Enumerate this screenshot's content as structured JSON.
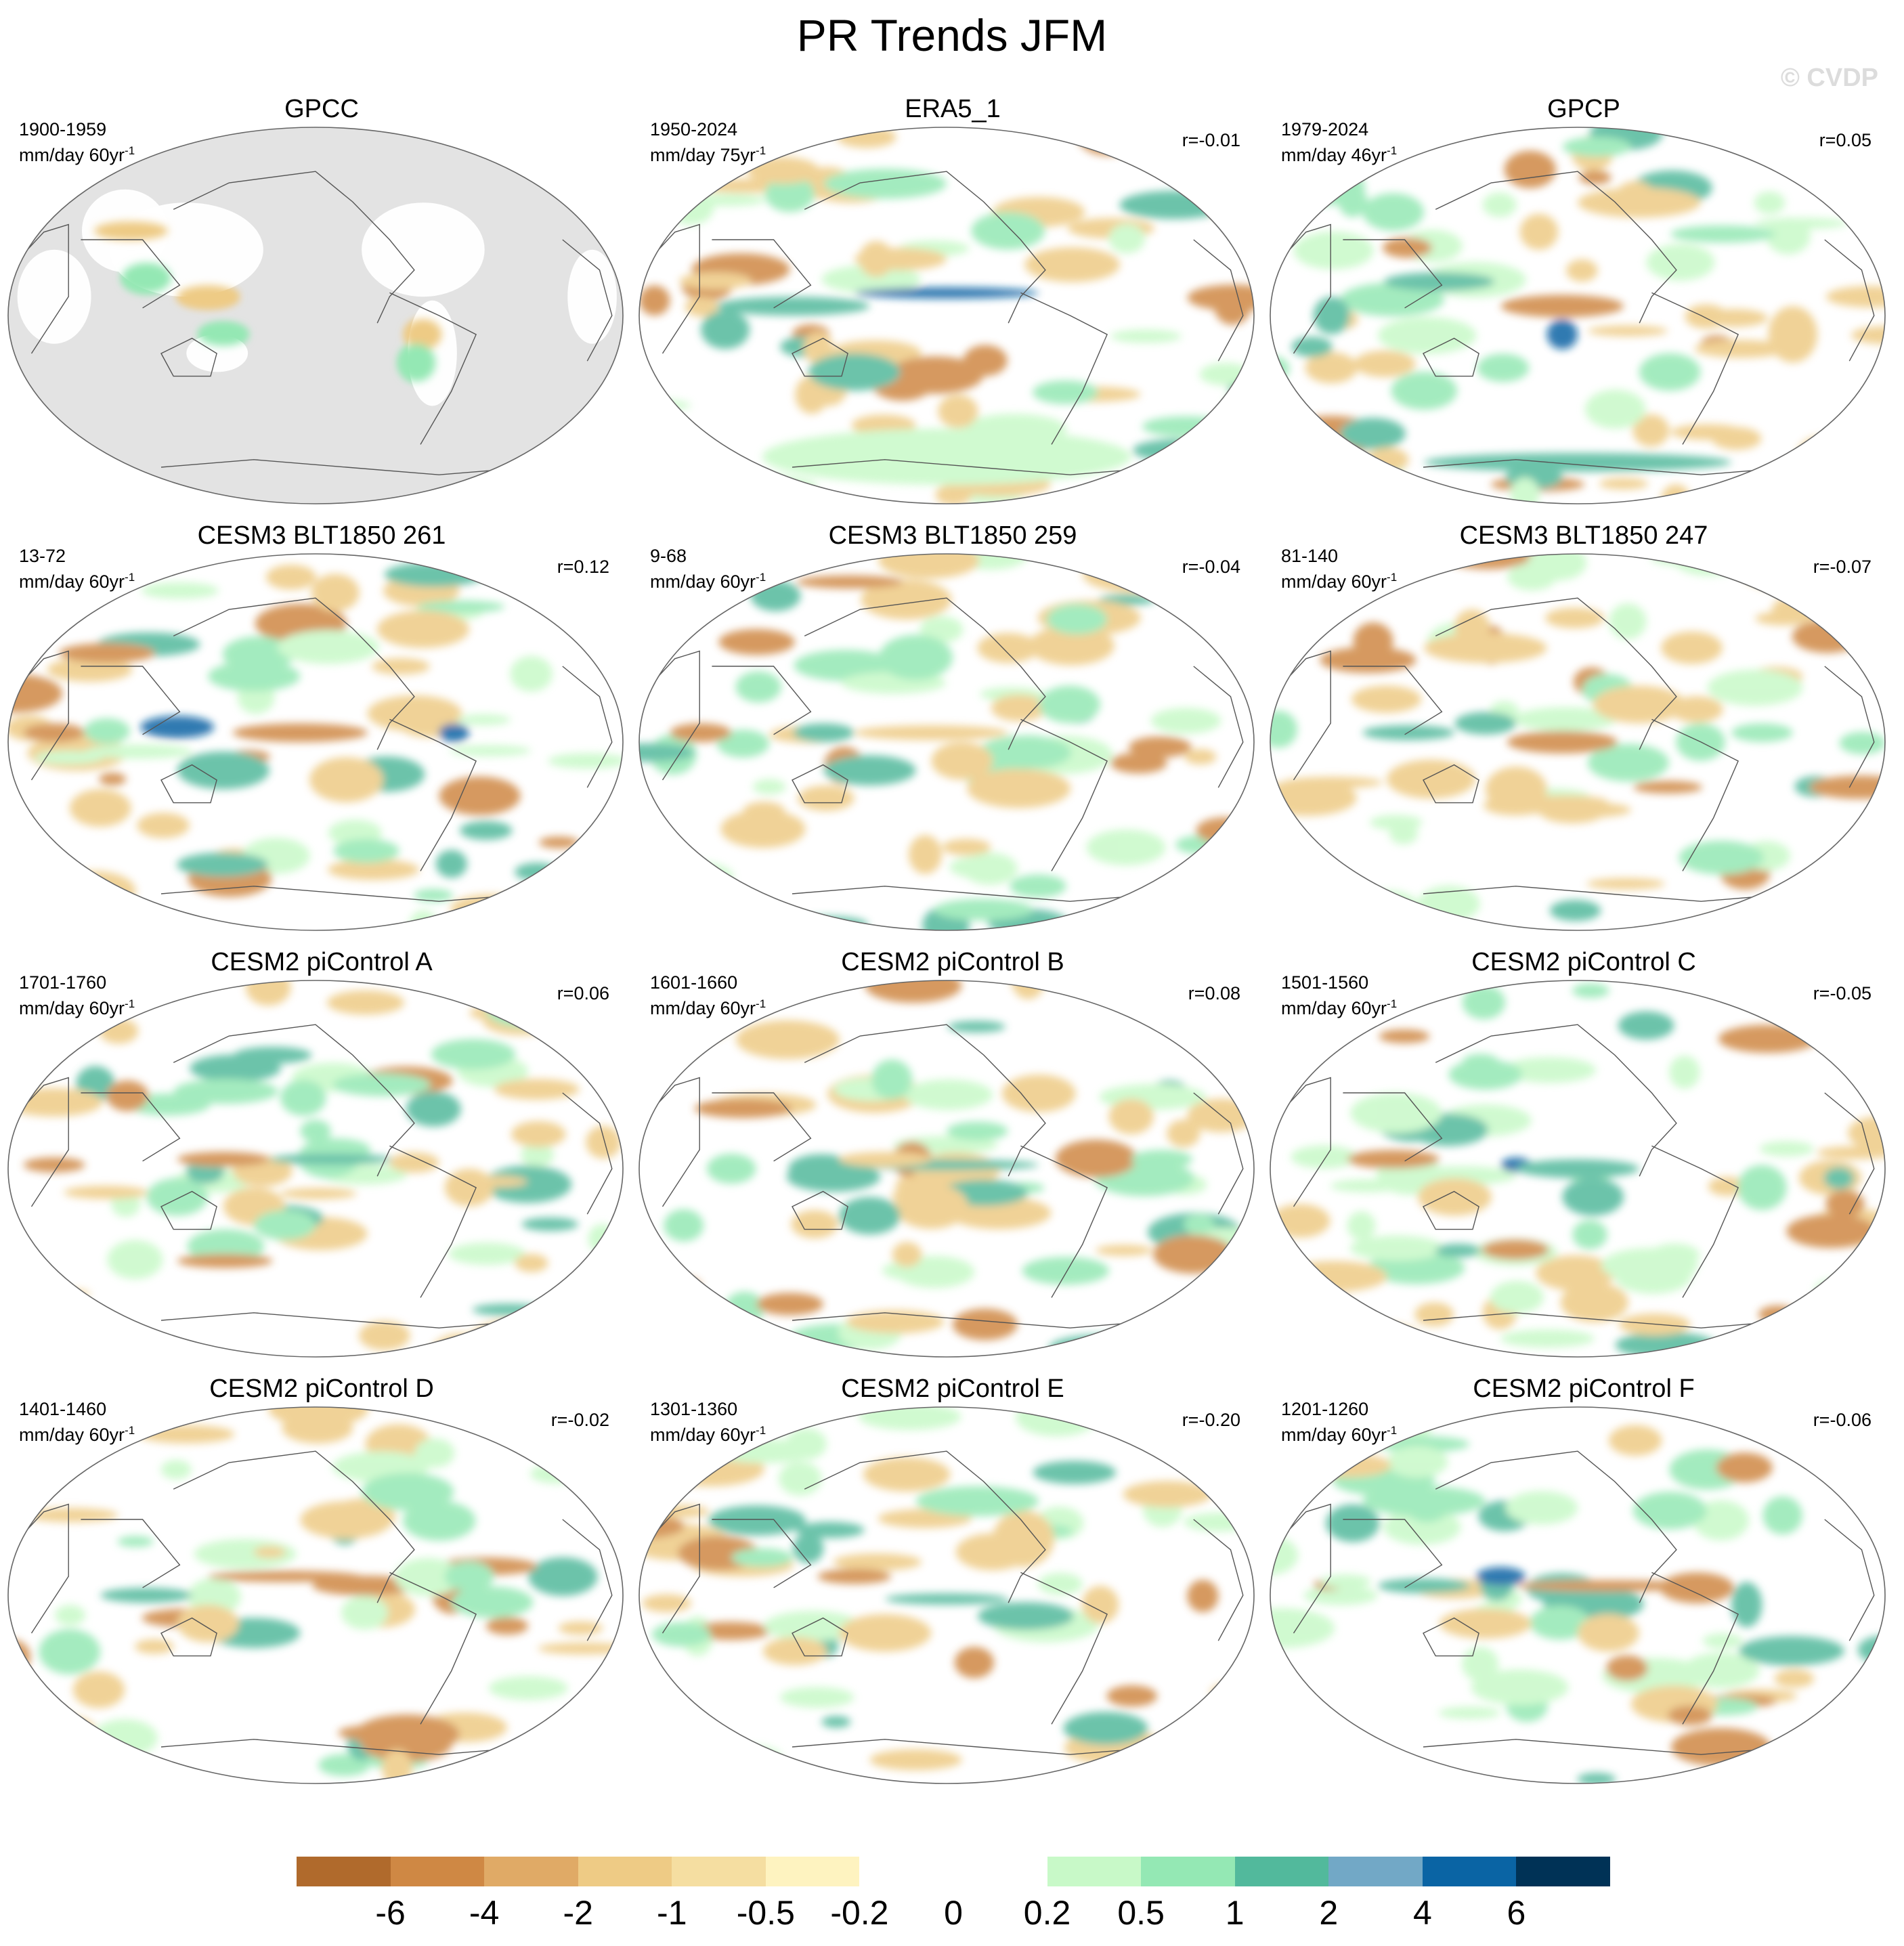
{
  "title": "PR Trends JFM",
  "watermark": "© CVDP",
  "units_label": "mm/day",
  "panels": [
    {
      "title": "GPCC",
      "period": "1900-1959",
      "trend_len": "60yr",
      "r": "",
      "obs_mask": true,
      "blobs": [
        [
          "tan",
          -0.6,
          0.45,
          0.12,
          0.05
        ],
        [
          "green",
          -0.55,
          0.2,
          0.08,
          0.08
        ],
        [
          "tan",
          -0.35,
          0.1,
          0.1,
          0.06
        ],
        [
          "green",
          -0.3,
          -0.1,
          0.08,
          0.06
        ],
        [
          "tan",
          0.35,
          -0.1,
          0.06,
          0.08
        ],
        [
          "green",
          0.33,
          -0.25,
          0.06,
          0.1
        ]
      ]
    },
    {
      "title": "ERA5_1",
      "period": "1950-2024",
      "trend_len": "75yr",
      "r": "r=-0.01",
      "obs_mask": false,
      "blobs": [
        [
          "blue",
          0.0,
          0.12,
          0.3,
          0.03
        ],
        [
          "teal",
          -0.5,
          0.05,
          0.25,
          0.05
        ],
        [
          "orange",
          0.93,
          0.05,
          0.06,
          0.1
        ],
        [
          "orange",
          -0.95,
          0.08,
          0.05,
          0.08
        ],
        [
          "tan",
          0.3,
          0.55,
          0.15,
          0.08
        ],
        [
          "green",
          -0.2,
          0.7,
          0.2,
          0.08
        ],
        [
          "lgreen",
          0.0,
          -0.75,
          0.6,
          0.15
        ],
        [
          "teal",
          -0.3,
          -0.3,
          0.15,
          0.1
        ],
        [
          "green",
          0.2,
          0.45,
          0.12,
          0.1
        ],
        [
          "tan",
          -0.15,
          0.3,
          0.15,
          0.06
        ]
      ]
    },
    {
      "title": "GPCP",
      "period": "1979-2024",
      "trend_len": "46yr",
      "r": "r=0.05",
      "obs_mask": false,
      "blobs": [
        [
          "teal",
          -0.45,
          0.18,
          0.18,
          0.05
        ],
        [
          "orange",
          -0.05,
          0.05,
          0.2,
          0.06
        ],
        [
          "blue",
          -0.05,
          -0.1,
          0.05,
          0.08
        ],
        [
          "teal",
          0.0,
          -0.78,
          0.5,
          0.05
        ],
        [
          "tan",
          0.2,
          0.6,
          0.2,
          0.08
        ],
        [
          "green",
          -0.6,
          0.55,
          0.1,
          0.1
        ],
        [
          "teal",
          -0.8,
          0.0,
          0.06,
          0.1
        ],
        [
          "tan",
          0.7,
          -0.1,
          0.08,
          0.15
        ],
        [
          "green",
          0.3,
          -0.3,
          0.1,
          0.1
        ]
      ]
    },
    {
      "title": "CESM3 BLT1850 261",
      "period": "13-72",
      "trend_len": "60yr",
      "r": "r=0.12",
      "obs_mask": false,
      "blobs": [
        [
          "orange",
          -0.05,
          0.05,
          0.22,
          0.05
        ],
        [
          "blue",
          -0.45,
          0.08,
          0.12,
          0.06
        ],
        [
          "teal",
          -0.3,
          -0.15,
          0.15,
          0.1
        ],
        [
          "orange",
          -0.85,
          0.05,
          0.1,
          0.05
        ],
        [
          "green",
          -0.2,
          0.35,
          0.15,
          0.08
        ],
        [
          "tan",
          0.35,
          0.6,
          0.15,
          0.1
        ],
        [
          "blue",
          0.45,
          0.05,
          0.05,
          0.05
        ],
        [
          "tan",
          -0.7,
          -0.35,
          0.1,
          0.1
        ],
        [
          "tan",
          0.1,
          -0.2,
          0.12,
          0.12
        ]
      ]
    },
    {
      "title": "CESM3 BLT1850 259",
      "period": "9-68",
      "trend_len": "60yr",
      "r": "r=-0.04",
      "obs_mask": false,
      "blobs": [
        [
          "tan",
          -0.05,
          0.05,
          0.25,
          0.04
        ],
        [
          "teal",
          -0.4,
          0.05,
          0.1,
          0.05
        ],
        [
          "orange",
          -0.8,
          0.05,
          0.1,
          0.05
        ],
        [
          "green",
          -0.1,
          0.45,
          0.12,
          0.12
        ],
        [
          "teal",
          -0.25,
          -0.15,
          0.15,
          0.08
        ],
        [
          "tan",
          0.05,
          -0.1,
          0.1,
          0.1
        ],
        [
          "green",
          0.4,
          0.2,
          0.1,
          0.1
        ],
        [
          "tan",
          0.2,
          0.5,
          0.1,
          0.08
        ]
      ]
    },
    {
      "title": "CESM3 BLT1850 247",
      "period": "81-140",
      "trend_len": "60yr",
      "r": "r=-0.07",
      "obs_mask": false,
      "blobs": [
        [
          "orange",
          -0.05,
          0.0,
          0.18,
          0.06
        ],
        [
          "teal",
          -0.55,
          0.05,
          0.15,
          0.04
        ],
        [
          "teal",
          -0.3,
          0.1,
          0.1,
          0.06
        ],
        [
          "tan",
          -0.2,
          -0.25,
          0.1,
          0.12
        ],
        [
          "green",
          0.4,
          0.0,
          0.08,
          0.1
        ],
        [
          "tan",
          0.2,
          0.2,
          0.15,
          0.1
        ],
        [
          "tan",
          -0.3,
          0.5,
          0.2,
          0.08
        ],
        [
          "green",
          0.6,
          0.05,
          0.1,
          0.05
        ]
      ]
    },
    {
      "title": "CESM2 piControl A",
      "period": "1701-1760",
      "trend_len": "60yr",
      "r": "r=0.06",
      "obs_mask": false,
      "blobs": [
        [
          "orange",
          -0.3,
          0.05,
          0.15,
          0.04
        ],
        [
          "teal",
          0.05,
          0.05,
          0.2,
          0.03
        ],
        [
          "orange",
          -0.85,
          0.02,
          0.1,
          0.04
        ],
        [
          "green",
          -0.45,
          -0.15,
          0.1,
          0.1
        ],
        [
          "green",
          0.0,
          0.2,
          0.05,
          0.06
        ],
        [
          "tan",
          -0.2,
          -0.2,
          0.1,
          0.1
        ],
        [
          "green",
          -0.1,
          -0.3,
          0.1,
          0.08
        ],
        [
          "tan",
          0.5,
          -0.1,
          0.08,
          0.1
        ]
      ]
    },
    {
      "title": "CESM2 piControl B",
      "period": "1601-1660",
      "trend_len": "60yr",
      "r": "r=0.08",
      "obs_mask": false,
      "blobs": [
        [
          "teal",
          0.0,
          0.02,
          0.3,
          0.03
        ],
        [
          "tan",
          -0.2,
          0.05,
          0.15,
          0.04
        ],
        [
          "tan",
          -0.05,
          -0.2,
          0.12,
          0.12
        ],
        [
          "teal",
          -0.25,
          -0.25,
          0.1,
          0.1
        ],
        [
          "green",
          0.1,
          0.2,
          0.1,
          0.05
        ],
        [
          "green",
          -0.7,
          0.0,
          0.08,
          0.08
        ],
        [
          "tan",
          0.3,
          0.4,
          0.12,
          0.1
        ],
        [
          "green",
          0.7,
          0.05,
          0.1,
          0.05
        ]
      ]
    },
    {
      "title": "CESM2 piControl C",
      "period": "1501-1560",
      "trend_len": "60yr",
      "r": "r=-0.05",
      "obs_mask": false,
      "blobs": [
        [
          "blue",
          -0.2,
          0.02,
          0.05,
          0.04
        ],
        [
          "teal",
          0.0,
          0.0,
          0.2,
          0.05
        ],
        [
          "teal",
          0.05,
          -0.15,
          0.1,
          0.1
        ],
        [
          "orange",
          -0.6,
          0.05,
          0.15,
          0.05
        ],
        [
          "tan",
          -0.4,
          -0.15,
          0.12,
          0.1
        ],
        [
          "teal",
          0.85,
          -0.05,
          0.05,
          0.06
        ],
        [
          "green",
          0.6,
          -0.1,
          0.08,
          0.12
        ],
        [
          "green",
          -0.3,
          0.5,
          0.12,
          0.08
        ]
      ]
    },
    {
      "title": "CESM2 piControl D",
      "period": "1401-1460",
      "trend_len": "60yr",
      "r": "r=-0.02",
      "obs_mask": false,
      "blobs": [
        [
          "orange",
          -0.1,
          0.1,
          0.25,
          0.03
        ],
        [
          "teal",
          -0.55,
          0.0,
          0.15,
          0.04
        ],
        [
          "teal",
          -0.2,
          -0.2,
          0.15,
          0.08
        ],
        [
          "tan",
          -0.35,
          -0.15,
          0.1,
          0.1
        ],
        [
          "green",
          -0.8,
          -0.3,
          0.1,
          0.12
        ],
        [
          "tan",
          0.1,
          0.4,
          0.15,
          0.1
        ],
        [
          "green",
          0.3,
          0.55,
          0.15,
          0.1
        ],
        [
          "green",
          0.5,
          0.1,
          0.08,
          0.08
        ]
      ]
    },
    {
      "title": "CESM2 piControl E",
      "period": "1301-1360",
      "trend_len": "60yr",
      "r": "r=-0.20",
      "obs_mask": false,
      "blobs": [
        [
          "orange",
          -0.3,
          0.1,
          0.12,
          0.04
        ],
        [
          "teal",
          -0.45,
          0.25,
          0.05,
          0.08
        ],
        [
          "teal",
          0.0,
          -0.02,
          0.2,
          0.03
        ],
        [
          "tan",
          -0.2,
          -0.2,
          0.15,
          0.1
        ],
        [
          "tan",
          0.25,
          0.3,
          0.1,
          0.15
        ],
        [
          "green",
          -0.6,
          0.2,
          0.1,
          0.05
        ],
        [
          "green",
          0.1,
          0.5,
          0.2,
          0.08
        ],
        [
          "tan",
          0.5,
          -0.05,
          0.06,
          0.1
        ]
      ]
    },
    {
      "title": "CESM2 piControl F",
      "period": "1201-1260",
      "trend_len": "60yr",
      "r": "r=-0.06",
      "obs_mask": false,
      "blobs": [
        [
          "blue",
          -0.25,
          0.1,
          0.08,
          0.05
        ],
        [
          "teal",
          -0.5,
          0.05,
          0.15,
          0.04
        ],
        [
          "orange",
          0.1,
          0.05,
          0.3,
          0.03
        ],
        [
          "tan",
          -0.3,
          -0.15,
          0.15,
          0.08
        ],
        [
          "teal",
          0.55,
          -0.05,
          0.05,
          0.12
        ],
        [
          "green",
          0.3,
          0.45,
          0.12,
          0.1
        ],
        [
          "tan",
          0.1,
          -0.2,
          0.1,
          0.1
        ],
        [
          "green",
          -0.5,
          0.5,
          0.2,
          0.08
        ]
      ]
    }
  ],
  "colorbar": {
    "colors": [
      "#b06a2c",
      "#cf8844",
      "#e0aa66",
      "#eecb85",
      "#f5dea1",
      "#fef3c0",
      "#ffffff",
      "#ffffff",
      "#c8f9c8",
      "#94e8b4",
      "#52b99c",
      "#72a8c6",
      "#0a64a4",
      "#003256"
    ],
    "labels": [
      "-6",
      "-4",
      "-2",
      "-1",
      "-0.5",
      "-0.2",
      "0",
      "0.2",
      "0.5",
      "1",
      "2",
      "4",
      "6"
    ]
  },
  "palette": {
    "orange": "#cf8844",
    "tan": "#eecb85",
    "lgreen": "#c8f9c8",
    "green": "#94e8b4",
    "teal": "#52b99c",
    "blue": "#0a64a4",
    "land_mask": "#e3e3e3",
    "coast": "#555555"
  }
}
